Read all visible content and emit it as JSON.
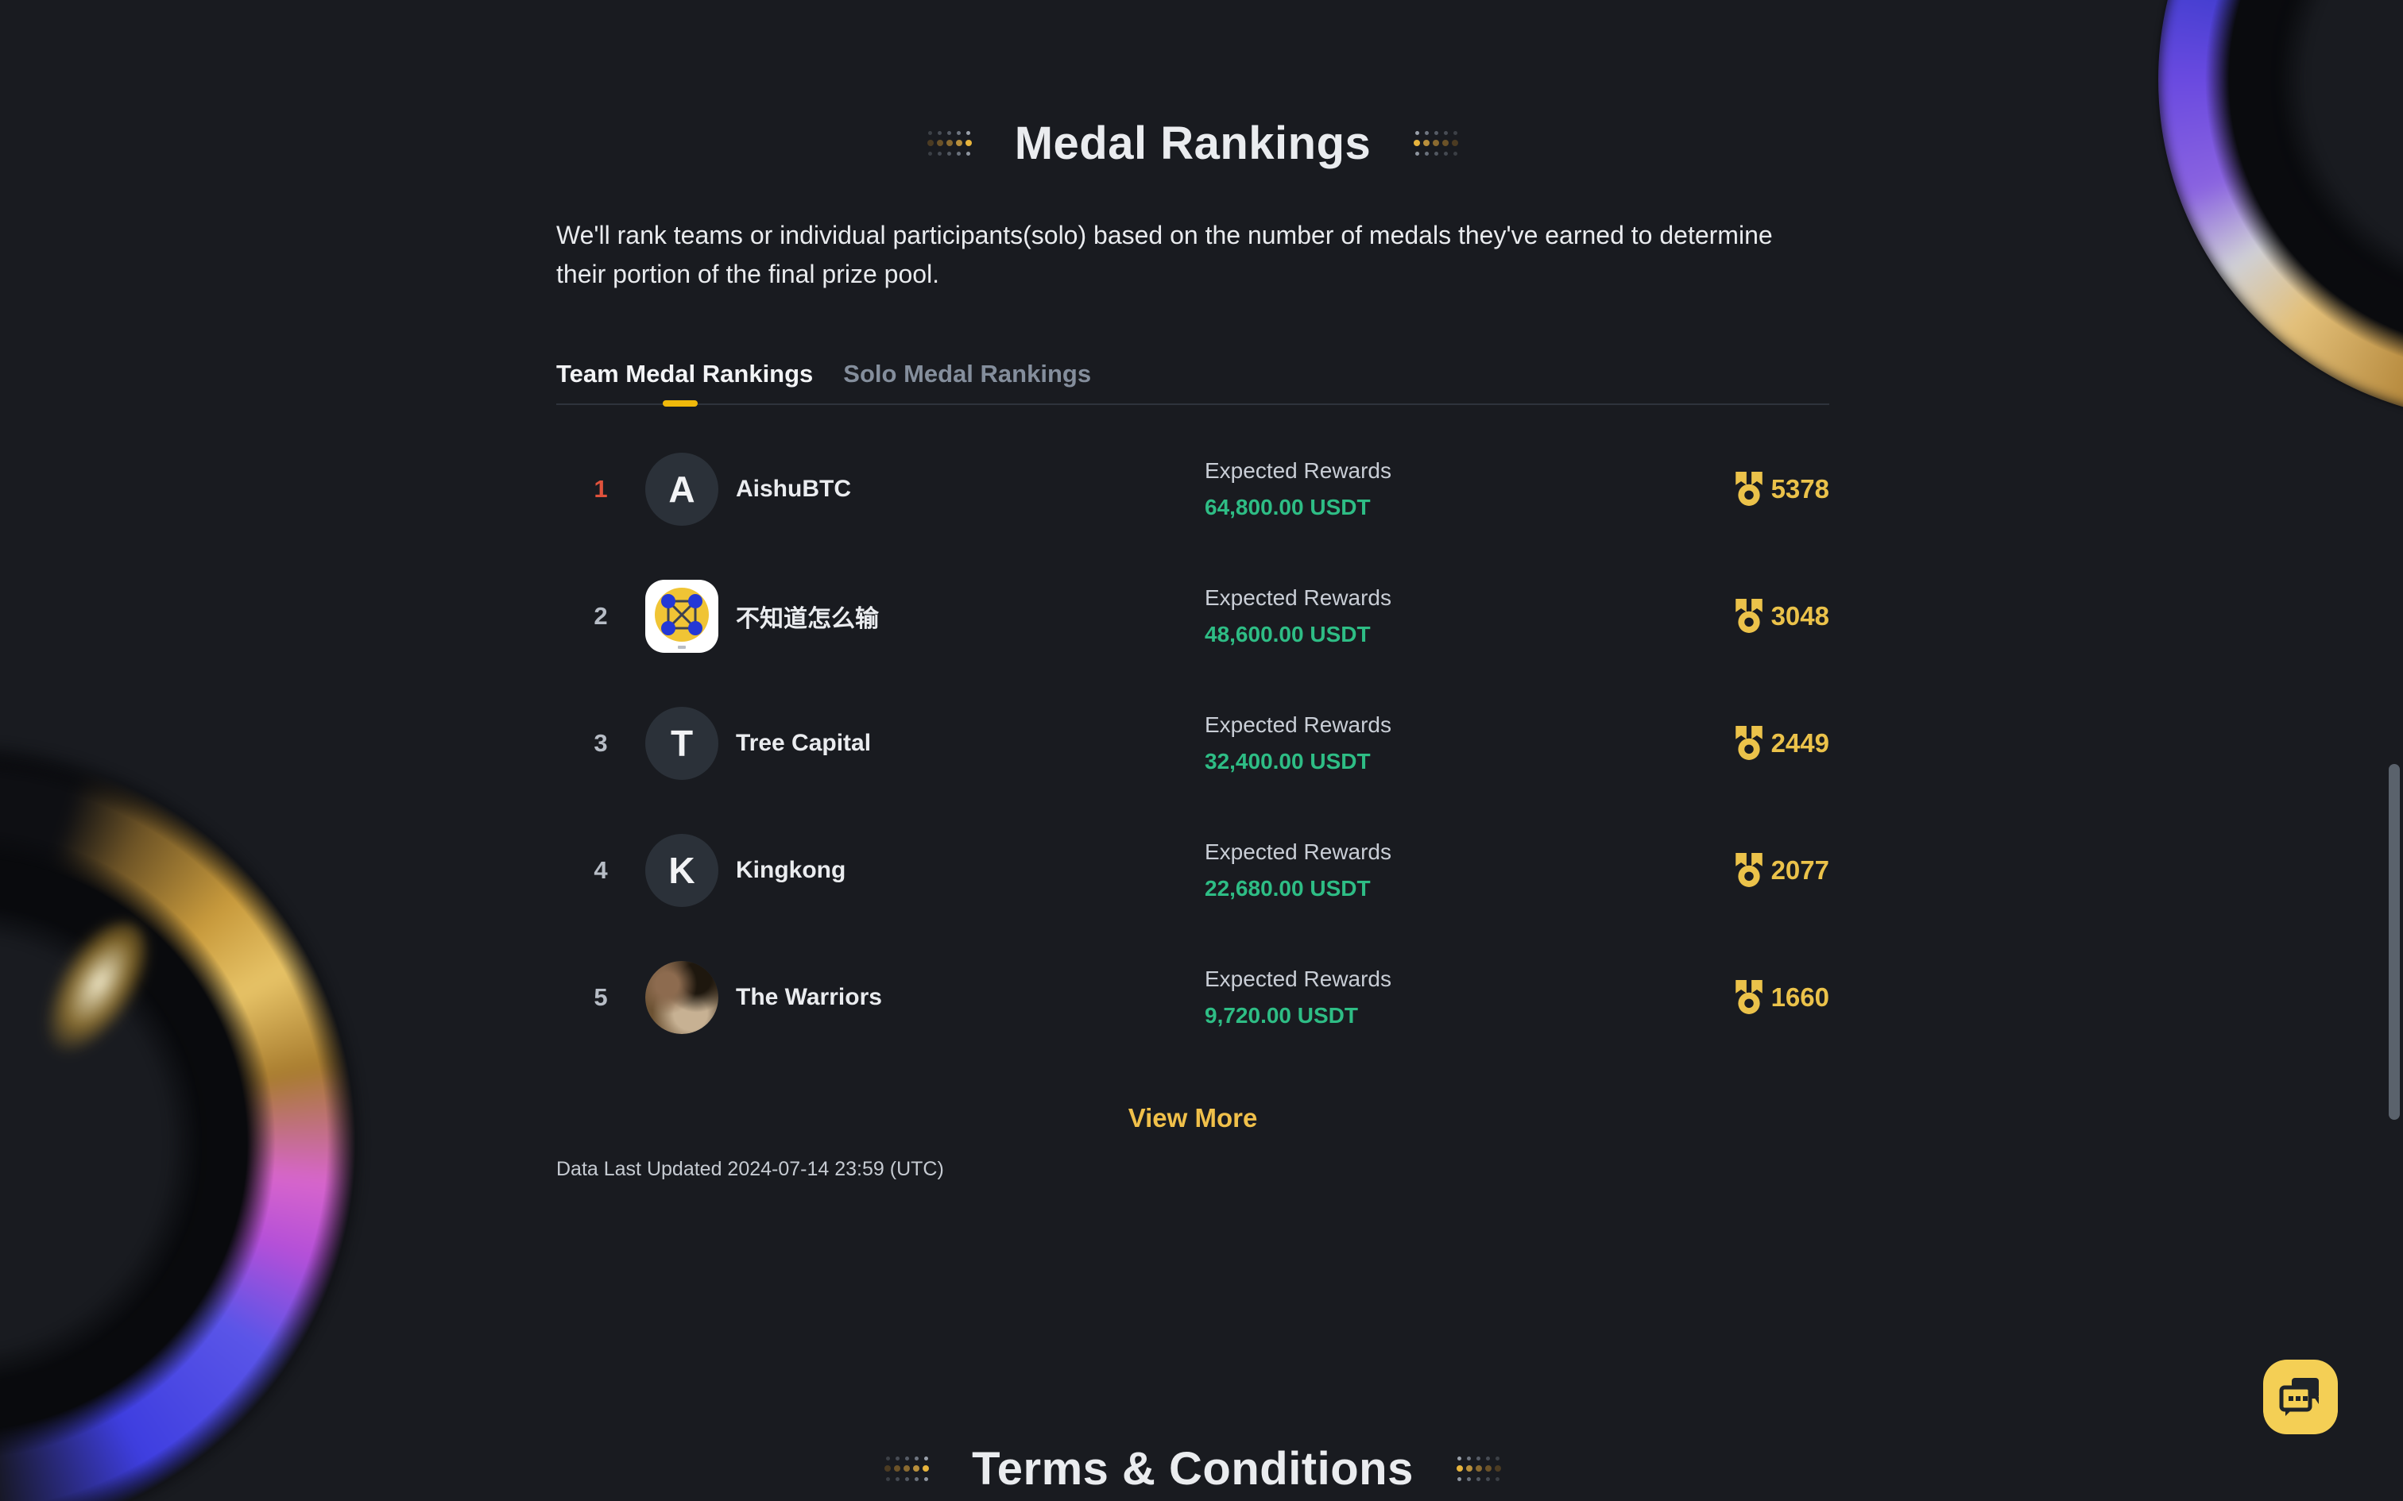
{
  "medal_section": {
    "title": "Medal Rankings",
    "description": "We'll rank teams or individual participants(solo) based on the number of medals they've earned to determine their portion of the final prize pool.",
    "tabs": [
      {
        "label": "Team Medal Rankings",
        "active": true
      },
      {
        "label": "Solo Medal Rankings",
        "active": false
      }
    ],
    "rows": [
      {
        "rank": "1",
        "name": "AishuBTC",
        "avatar": {
          "type": "letter",
          "letter": "A"
        },
        "rewards_label": "Expected Rewards",
        "rewards": "64,800.00 USDT",
        "medals": "5378"
      },
      {
        "rank": "2",
        "name": "不知道怎么输",
        "avatar": {
          "type": "graphic"
        },
        "rewards_label": "Expected Rewards",
        "rewards": "48,600.00 USDT",
        "medals": "3048"
      },
      {
        "rank": "3",
        "name": "Tree Capital",
        "avatar": {
          "type": "letter",
          "letter": "T"
        },
        "rewards_label": "Expected Rewards",
        "rewards": "32,400.00 USDT",
        "medals": "2449"
      },
      {
        "rank": "4",
        "name": "Kingkong",
        "avatar": {
          "type": "letter",
          "letter": "K"
        },
        "rewards_label": "Expected Rewards",
        "rewards": "22,680.00 USDT",
        "medals": "2077"
      },
      {
        "rank": "5",
        "name": "The Warriors",
        "avatar": {
          "type": "photo"
        },
        "rewards_label": "Expected Rewards",
        "rewards": "9,720.00 USDT",
        "medals": "1660"
      }
    ],
    "view_more_label": "View More",
    "last_updated": "Data Last Updated 2024-07-14 23:59 (UTC)"
  },
  "terms_section": {
    "title": "Terms & Conditions"
  },
  "colors": {
    "background": "#191B20",
    "accent_yellow": "#F0B90B",
    "medal_gold": "#EBC24A",
    "rewards_green": "#2EBD85",
    "rank_first_orange": "#E0523C",
    "text_primary": "#EAECEF",
    "text_secondary": "#848E9C"
  }
}
